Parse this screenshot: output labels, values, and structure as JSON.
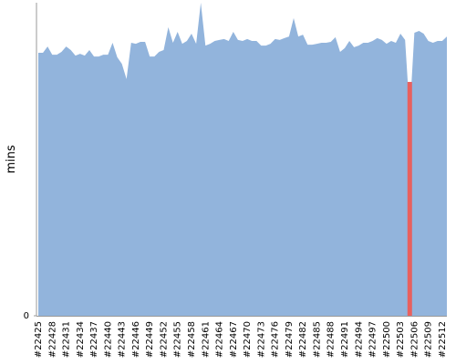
{
  "chart_data": {
    "type": "area",
    "y_label": "mins",
    "categories": [
      "#22425",
      null,
      null,
      "#22428",
      null,
      null,
      "#22431",
      null,
      null,
      "#22434",
      null,
      null,
      "#22437",
      null,
      null,
      "#22440",
      null,
      null,
      "#22443",
      null,
      null,
      "#22446",
      null,
      null,
      "#22449",
      null,
      null,
      "#22452",
      null,
      null,
      "#22455",
      null,
      null,
      "#22458",
      null,
      null,
      "#22461",
      null,
      null,
      "#22464",
      null,
      null,
      "#22467",
      null,
      null,
      "#22470",
      null,
      null,
      "#22473",
      null,
      null,
      "#22476",
      null,
      null,
      "#22479",
      null,
      null,
      "#22482",
      null,
      null,
      "#22485",
      null,
      null,
      "#22488",
      null,
      null,
      "#22491",
      null,
      null,
      "#22494",
      null,
      null,
      "#22497",
      null,
      null,
      "#22500",
      null,
      null,
      "#22503",
      null,
      null,
      "#22506",
      null,
      null,
      "#22509",
      null,
      null,
      "#22512",
      null
    ],
    "series": [
      {
        "color": "#92b4dc",
        "style": "area",
        "values": [
          84.0,
          84.0,
          86.0,
          83.4,
          83.4,
          84.3,
          86.0,
          84.9,
          83.1,
          83.7,
          83.1,
          84.9,
          82.8,
          82.8,
          83.4,
          83.4,
          87.2,
          82.6,
          80.5,
          75.6,
          87.2,
          86.9,
          87.5,
          87.5,
          82.8,
          82.8,
          84.3,
          84.9,
          92.2,
          87.2,
          90.7,
          86.9,
          87.8,
          90.1,
          86.9,
          100,
          86.3,
          86.9,
          87.8,
          88.1,
          88.4,
          87.8,
          90.7,
          88.1,
          87.8,
          88.4,
          87.8,
          87.8,
          86.3,
          86.3,
          86.9,
          88.4,
          88.1,
          88.7,
          89.2,
          95.1,
          89.2,
          89.8,
          86.6,
          86.6,
          86.9,
          87.2,
          87.2,
          87.5,
          89.0,
          84.3,
          85.5,
          87.8,
          85.8,
          86.3,
          87.2,
          87.2,
          87.8,
          88.7,
          88.1,
          86.9,
          87.8,
          87.2,
          90.1,
          88.1,
          64.5,
          90.4,
          91.0,
          90.1,
          87.8,
          87.2,
          87.8,
          87.8,
          89.2
        ]
      },
      {
        "color": "#e8605e",
        "style": "bar",
        "values": [
          null,
          null,
          null,
          null,
          null,
          null,
          null,
          null,
          null,
          null,
          null,
          null,
          null,
          null,
          null,
          null,
          null,
          null,
          null,
          null,
          null,
          null,
          null,
          null,
          null,
          null,
          null,
          null,
          null,
          null,
          null,
          null,
          null,
          null,
          null,
          null,
          null,
          null,
          null,
          null,
          null,
          null,
          null,
          null,
          null,
          null,
          null,
          null,
          null,
          null,
          null,
          null,
          null,
          null,
          null,
          null,
          null,
          null,
          null,
          null,
          null,
          null,
          null,
          null,
          null,
          null,
          null,
          null,
          null,
          null,
          null,
          null,
          null,
          null,
          null,
          null,
          null,
          null,
          null,
          null,
          74.7,
          null,
          null,
          null,
          null,
          null,
          null,
          null,
          null
        ]
      }
    ],
    "ylim": [
      0,
      100
    ],
    "yticks": [
      0
    ]
  }
}
